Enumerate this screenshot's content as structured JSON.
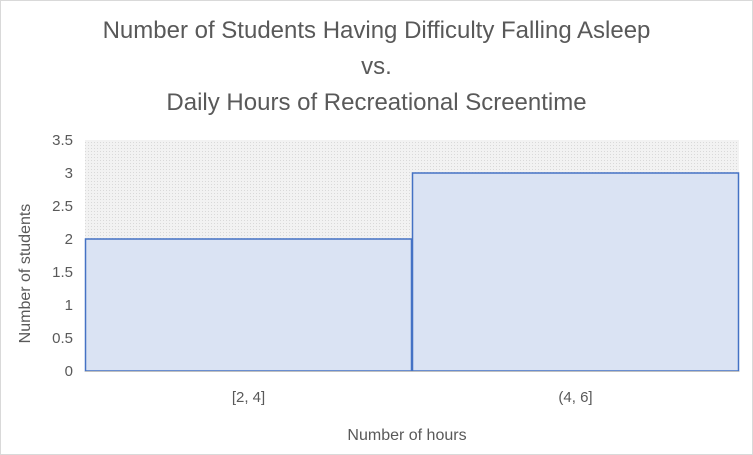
{
  "chart_data": {
    "type": "bar",
    "title": [
      "Number of Students Having Difficulty Falling Asleep",
      "vs.",
      "Daily Hours of Recreational Screentime"
    ],
    "categories": [
      "[2, 4]",
      "(4, 6]"
    ],
    "values": [
      2,
      3
    ],
    "xlabel": "Number of hours",
    "ylabel": "Number of students",
    "ylim": [
      0,
      3.5
    ],
    "yticks": [
      "0",
      "0.5",
      "1",
      "1.5",
      "2",
      "2.5",
      "3",
      "3.5"
    ],
    "grid": false,
    "legend": "none",
    "colors": {
      "bar_fill": "#dae3f3",
      "bar_edge": "#4472c4",
      "plot_background": "#eeeeee",
      "text": "#595959",
      "axis_line": "#bfbfbf"
    }
  }
}
